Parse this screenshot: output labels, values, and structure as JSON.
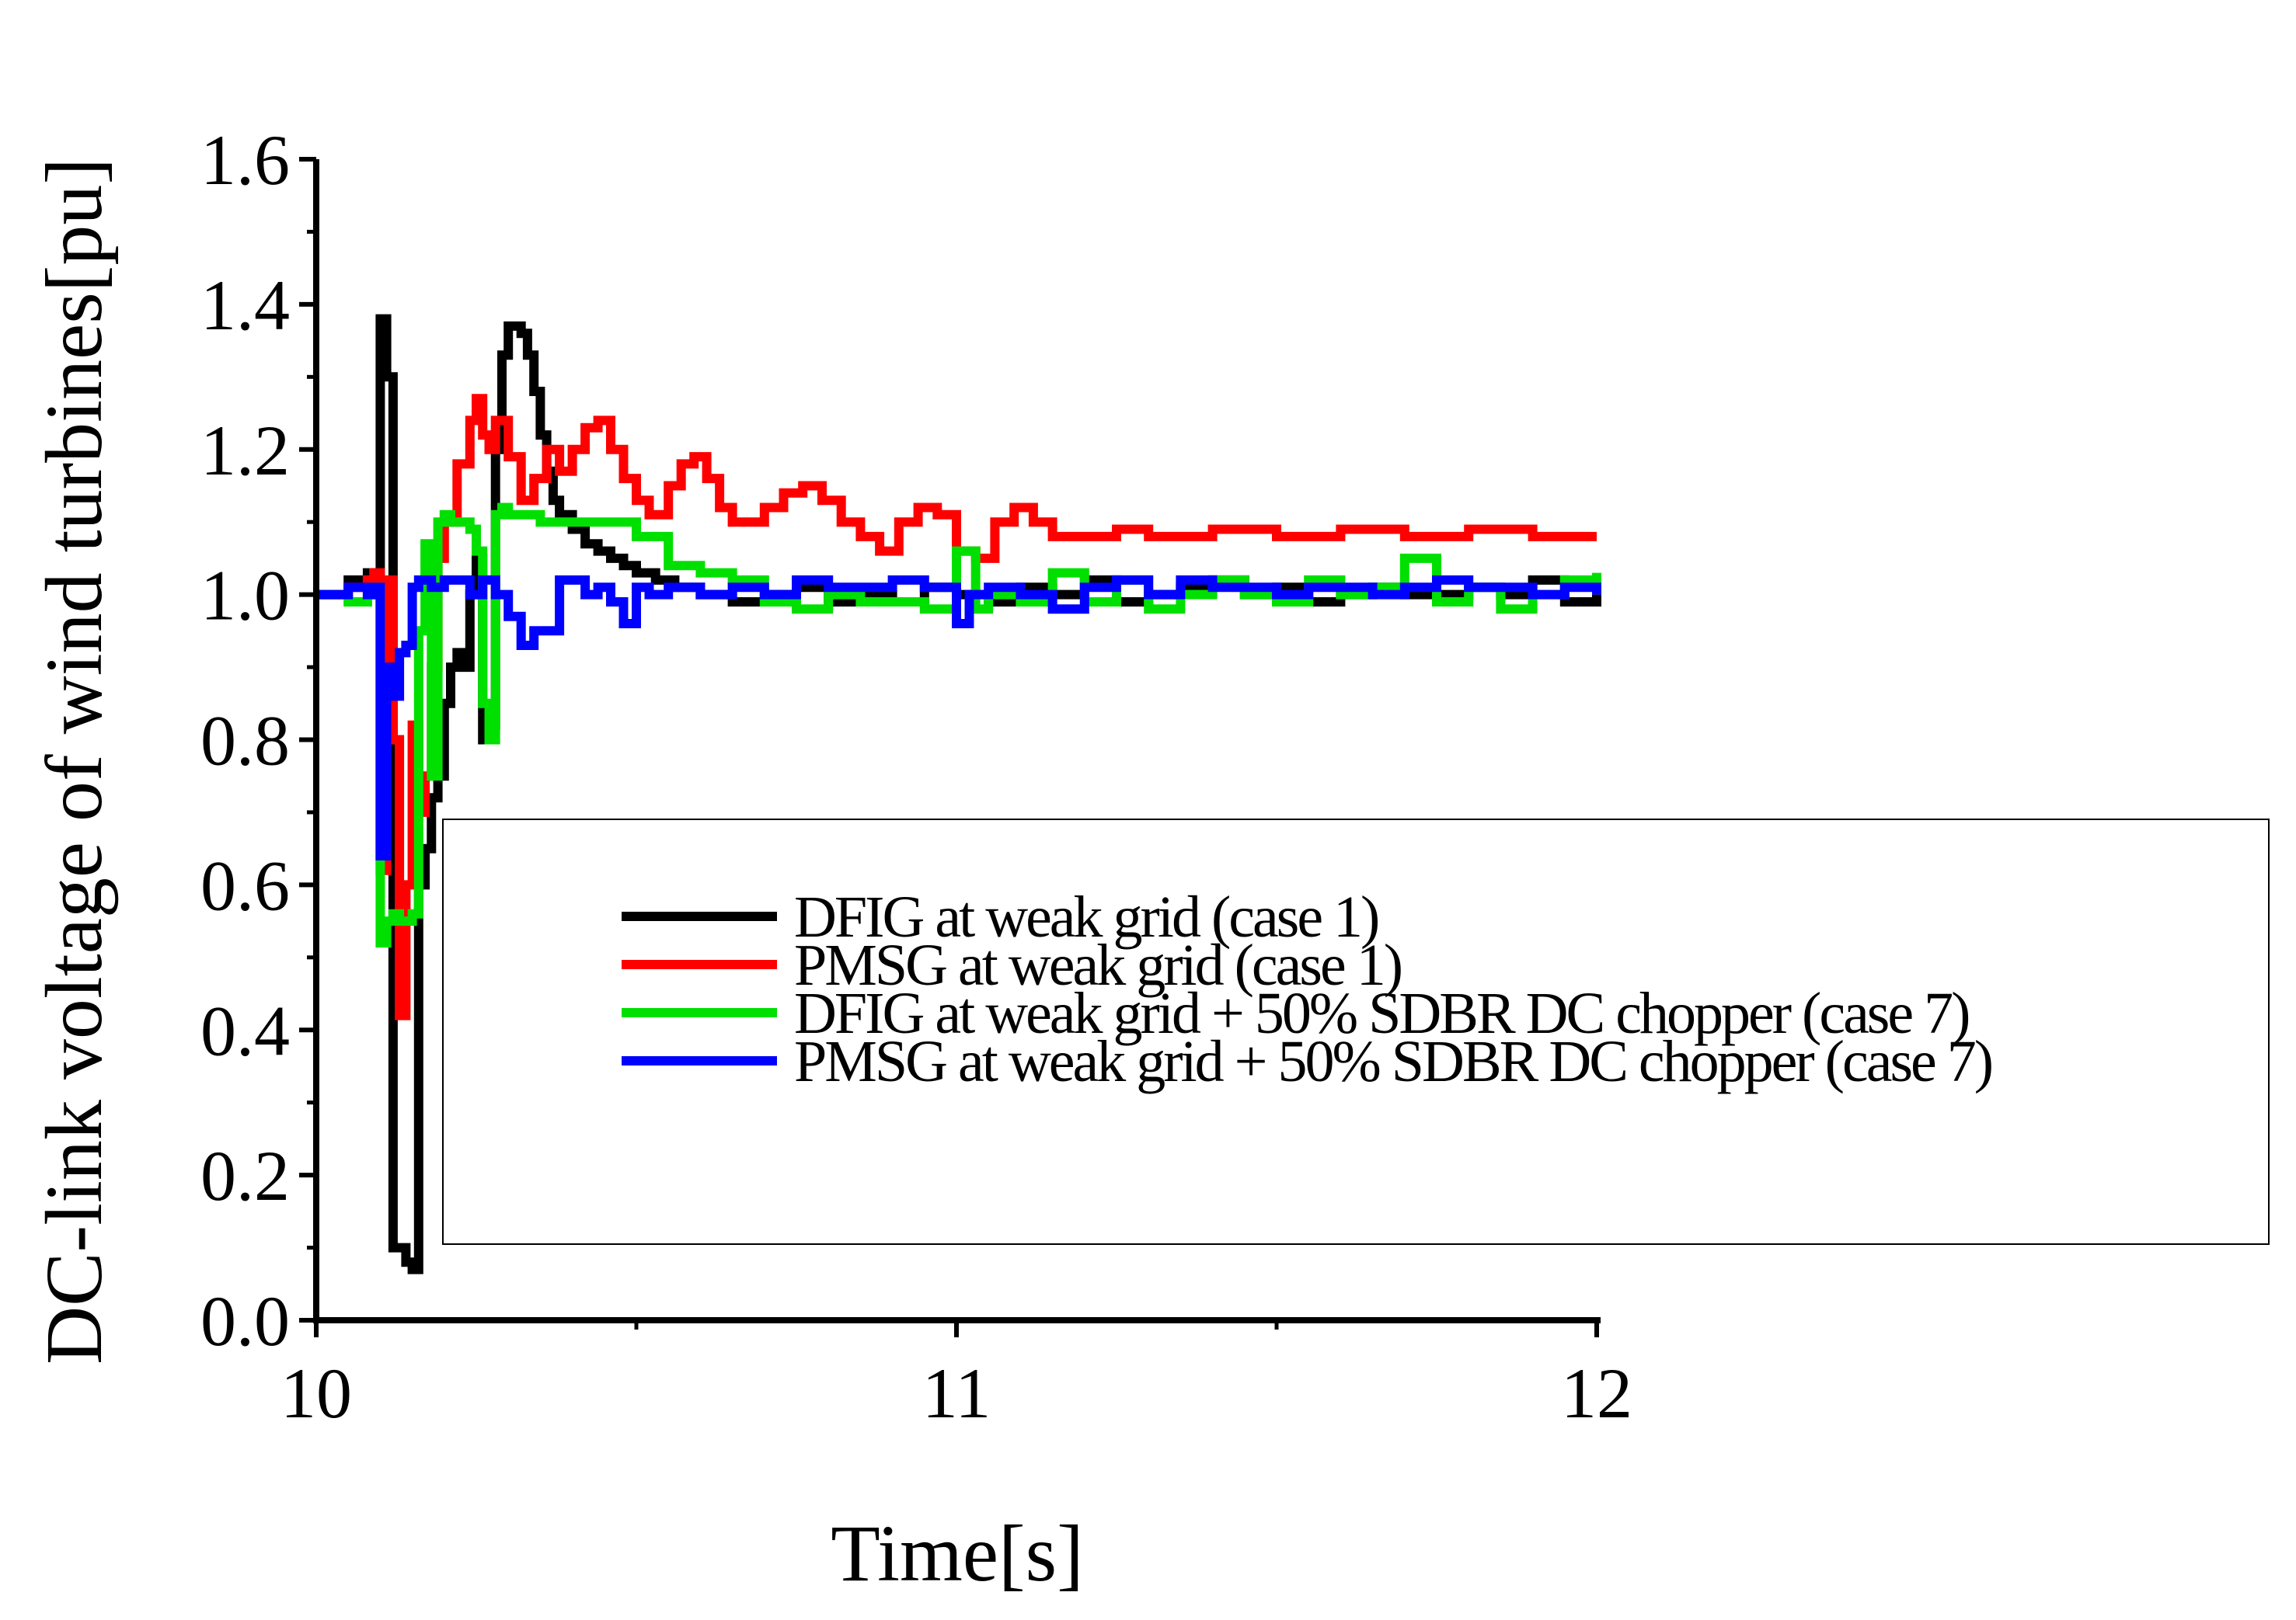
{
  "chart_data": {
    "type": "line",
    "title": "",
    "xlabel": "Time[s]",
    "ylabel": "DC-link voltage of wind turbines[pu]",
    "xlim": [
      10,
      12
    ],
    "ylim": [
      0.0,
      1.6
    ],
    "xticks": [
      10,
      11,
      12
    ],
    "xtick_labels": [
      "10",
      "11",
      "12"
    ],
    "yticks": [
      0.0,
      0.2,
      0.4,
      0.6,
      0.8,
      1.0,
      1.2,
      1.4,
      1.6
    ],
    "ytick_labels": [
      "0.0",
      "0.2",
      "0.4",
      "0.6",
      "0.8",
      "1.0",
      "1.2",
      "1.4",
      "1.6"
    ],
    "grid": false,
    "legend_position": "center-right",
    "series": [
      {
        "name": "DFIG at weak grid (case 1)",
        "color": "#000000",
        "x": [
          10.0,
          10.05,
          10.08,
          10.09,
          10.1,
          10.11,
          10.12,
          10.13,
          10.14,
          10.15,
          10.16,
          10.17,
          10.18,
          10.19,
          10.2,
          10.21,
          10.22,
          10.23,
          10.24,
          10.25,
          10.26,
          10.27,
          10.28,
          10.29,
          10.3,
          10.31,
          10.32,
          10.33,
          10.34,
          10.35,
          10.36,
          10.37,
          10.38,
          10.4,
          10.42,
          10.44,
          10.46,
          10.48,
          10.5,
          10.53,
          10.56,
          10.6,
          10.65,
          10.7,
          10.75,
          10.8,
          10.85,
          10.9,
          10.95,
          11.0,
          11.05,
          11.1,
          11.15,
          11.2,
          11.25,
          11.3,
          11.35,
          11.4,
          11.45,
          11.5,
          11.55,
          11.6,
          11.65,
          11.7,
          11.75,
          11.8,
          11.85,
          11.9,
          11.95,
          12.0
        ],
        "y": [
          1.0,
          1.02,
          1.03,
          1.0,
          1.38,
          1.3,
          0.1,
          0.1,
          0.08,
          0.07,
          0.6,
          0.65,
          0.72,
          0.75,
          0.85,
          0.9,
          0.92,
          0.9,
          1.0,
          1.05,
          0.8,
          0.82,
          1.2,
          1.33,
          1.37,
          1.37,
          1.36,
          1.33,
          1.28,
          1.22,
          1.17,
          1.13,
          1.11,
          1.09,
          1.07,
          1.06,
          1.05,
          1.04,
          1.03,
          1.02,
          1.01,
          1.0,
          0.99,
          1.0,
          1.01,
          0.99,
          1.0,
          0.99,
          1.01,
          1.0,
          0.99,
          1.01,
          1.0,
          1.02,
          0.99,
          1.0,
          1.01,
          1.02,
          1.0,
          1.01,
          0.99,
          1.0,
          1.01,
          1.0,
          1.0,
          1.01,
          1.0,
          1.02,
          0.99,
          1.0
        ]
      },
      {
        "name": "PMSG at weak grid (case 1)",
        "color": "#ff0000",
        "x": [
          10.0,
          10.05,
          10.08,
          10.09,
          10.1,
          10.11,
          10.12,
          10.13,
          10.14,
          10.15,
          10.16,
          10.17,
          10.18,
          10.19,
          10.2,
          10.22,
          10.24,
          10.25,
          10.26,
          10.27,
          10.28,
          10.3,
          10.32,
          10.34,
          10.36,
          10.38,
          10.4,
          10.42,
          10.44,
          10.46,
          10.48,
          10.5,
          10.52,
          10.55,
          10.57,
          10.59,
          10.61,
          10.63,
          10.65,
          10.68,
          10.7,
          10.73,
          10.76,
          10.79,
          10.82,
          10.85,
          10.88,
          10.91,
          10.94,
          10.97,
          11.0,
          11.03,
          11.06,
          11.09,
          11.12,
          11.15,
          11.2,
          11.25,
          11.3,
          11.4,
          11.5,
          11.6,
          11.7,
          11.8,
          11.9,
          12.0
        ],
        "y": [
          1.0,
          1.01,
          1.02,
          1.03,
          0.62,
          1.02,
          0.8,
          0.42,
          0.6,
          0.82,
          0.7,
          0.75,
          0.9,
          1.05,
          1.1,
          1.18,
          1.24,
          1.27,
          1.22,
          1.2,
          1.24,
          1.19,
          1.13,
          1.16,
          1.2,
          1.17,
          1.2,
          1.23,
          1.24,
          1.2,
          1.16,
          1.13,
          1.11,
          1.15,
          1.18,
          1.19,
          1.16,
          1.12,
          1.1,
          1.1,
          1.12,
          1.14,
          1.15,
          1.13,
          1.1,
          1.08,
          1.06,
          1.1,
          1.12,
          1.11,
          1.06,
          1.05,
          1.1,
          1.12,
          1.1,
          1.08,
          1.08,
          1.09,
          1.08,
          1.09,
          1.08,
          1.09,
          1.08,
          1.09,
          1.08,
          1.08
        ]
      },
      {
        "name": "DFIG at weak grid + 50% SDBR DC chopper (case 7)",
        "color": "#00e000",
        "x": [
          10.0,
          10.05,
          10.08,
          10.09,
          10.1,
          10.11,
          10.12,
          10.13,
          10.14,
          10.15,
          10.16,
          10.17,
          10.18,
          10.19,
          10.2,
          10.21,
          10.22,
          10.23,
          10.24,
          10.25,
          10.26,
          10.27,
          10.28,
          10.29,
          10.3,
          10.32,
          10.35,
          10.4,
          10.45,
          10.5,
          10.55,
          10.6,
          10.65,
          10.7,
          10.75,
          10.8,
          10.85,
          10.9,
          10.95,
          11.0,
          11.03,
          11.05,
          11.1,
          11.15,
          11.2,
          11.25,
          11.3,
          11.35,
          11.4,
          11.45,
          11.5,
          11.55,
          11.6,
          11.65,
          11.7,
          11.75,
          11.8,
          11.85,
          11.9,
          11.95,
          12.0
        ],
        "y": [
          1.0,
          0.99,
          1.0,
          1.01,
          0.52,
          0.55,
          0.56,
          0.55,
          0.55,
          0.56,
          0.95,
          1.07,
          0.75,
          1.1,
          1.11,
          1.1,
          1.1,
          1.1,
          1.09,
          1.06,
          0.85,
          0.8,
          1.11,
          1.12,
          1.11,
          1.11,
          1.1,
          1.1,
          1.1,
          1.08,
          1.04,
          1.03,
          1.02,
          0.99,
          0.98,
          1.0,
          0.99,
          0.99,
          0.98,
          1.06,
          0.98,
          1.0,
          0.99,
          1.03,
          0.99,
          1.02,
          0.98,
          1.0,
          1.02,
          1.0,
          0.99,
          1.02,
          1.0,
          1.01,
          1.05,
          0.99,
          1.01,
          0.98,
          1.0,
          1.02,
          1.03
        ]
      },
      {
        "name": "PMSG at weak grid + 50% SDBR DC chopper (case 7)",
        "color": "#0000ff",
        "x": [
          10.0,
          10.05,
          10.08,
          10.09,
          10.1,
          10.11,
          10.12,
          10.13,
          10.14,
          10.15,
          10.16,
          10.17,
          10.18,
          10.2,
          10.22,
          10.24,
          10.26,
          10.28,
          10.3,
          10.32,
          10.34,
          10.36,
          10.38,
          10.4,
          10.42,
          10.44,
          10.46,
          10.48,
          10.5,
          10.52,
          10.55,
          10.6,
          10.65,
          10.7,
          10.75,
          10.8,
          10.85,
          10.9,
          10.95,
          11.0,
          11.02,
          11.05,
          11.1,
          11.15,
          11.2,
          11.25,
          11.3,
          11.35,
          11.4,
          11.45,
          11.5,
          11.55,
          11.6,
          11.65,
          11.7,
          11.75,
          11.8,
          11.85,
          11.9,
          11.95,
          12.0
        ],
        "y": [
          1.0,
          1.01,
          1.0,
          1.01,
          0.64,
          0.9,
          0.86,
          0.92,
          0.93,
          1.01,
          1.02,
          1.02,
          1.01,
          1.02,
          1.02,
          1.0,
          1.02,
          1.0,
          0.97,
          0.93,
          0.95,
          0.95,
          1.02,
          1.02,
          1.0,
          1.01,
          0.99,
          0.96,
          1.01,
          1.0,
          1.01,
          1.0,
          1.01,
          1.0,
          1.02,
          1.01,
          1.01,
          1.02,
          1.01,
          0.96,
          1.0,
          1.01,
          1.0,
          0.98,
          1.01,
          1.02,
          1.0,
          1.02,
          1.01,
          1.01,
          1.0,
          1.01,
          1.01,
          1.0,
          1.01,
          1.02,
          1.01,
          1.01,
          1.0,
          1.01,
          1.0
        ]
      }
    ]
  }
}
